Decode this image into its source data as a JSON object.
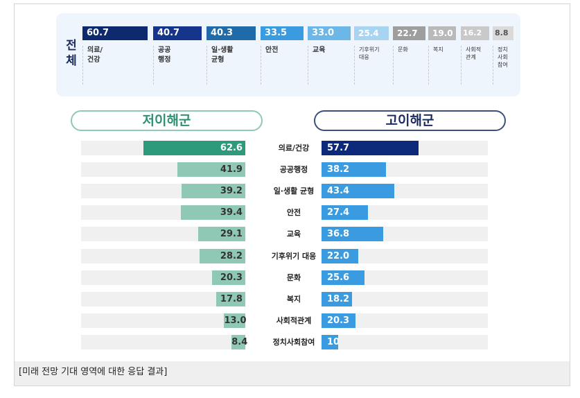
{
  "caption": "[미래 전망 기대 영역에 대한 응답 결과]",
  "chart_data": [
    {
      "type": "bar",
      "title": "전체",
      "categories": [
        "의료/건강",
        "공공행정",
        "일·생활 균형",
        "안전",
        "교육",
        "기후위기 대응",
        "문화",
        "복지",
        "사회적 관계",
        "정치 사회 참여"
      ],
      "labels": [
        [
          "의료/",
          "건강"
        ],
        [
          "공공",
          "행정"
        ],
        [
          "일·생활",
          "균형"
        ],
        [
          "안전"
        ],
        [
          "교육"
        ],
        [
          "기후위기",
          "대응"
        ],
        [
          "문화"
        ],
        [
          "복지"
        ],
        [
          "사회적",
          "관계"
        ],
        [
          "정치",
          "사회",
          "참여"
        ]
      ],
      "values": [
        60.7,
        40.7,
        40.3,
        33.5,
        33.0,
        25.4,
        22.7,
        19.0,
        16.2,
        8.8
      ],
      "value_labels": [
        "60.7",
        "40.7",
        "40.3",
        "33.5",
        "33.0",
        "25.4",
        "22.7",
        "19.0",
        "16.2",
        "8.8"
      ],
      "colors": [
        "#0d2a6e",
        "#15348c",
        "#1f6aa8",
        "#3a9be0",
        "#6cb6e8",
        "#a8d4f2",
        "#9e9e9e",
        "#b9b9b9",
        "#c9c9c9",
        "#dadada"
      ]
    },
    {
      "type": "bar",
      "orientation": "horizontal",
      "categories": [
        "의료/건강",
        "공공행정",
        "일·생활 균형",
        "안전",
        "교육",
        "기후위기 대응",
        "문화",
        "복지",
        "사회적관계",
        "정치사회참여"
      ],
      "series": [
        {
          "name": "저이해군",
          "values": [
            62.6,
            41.9,
            39.2,
            39.4,
            29.1,
            28.2,
            20.3,
            17.8,
            13.0,
            8.4
          ],
          "value_labels": [
            "62.6",
            "41.9",
            "39.2",
            "39.4",
            "29.1",
            "28.2",
            "20.3",
            "17.8",
            "13.0",
            "8.4"
          ],
          "color_highlight": "#2e9a7c",
          "color": "#8fc8b5"
        },
        {
          "name": "고이해군",
          "values": [
            57.7,
            38.2,
            43.4,
            27.4,
            36.8,
            22.0,
            25.6,
            18.2,
            20.3,
            10
          ],
          "value_labels": [
            "57.7",
            "38.2",
            "43.4",
            "27.4",
            "36.8",
            "22.0",
            "25.6",
            "18.2",
            "20.3",
            "10."
          ],
          "color_highlight": "#0d2a7a",
          "color": "#3a9be0"
        }
      ]
    }
  ]
}
